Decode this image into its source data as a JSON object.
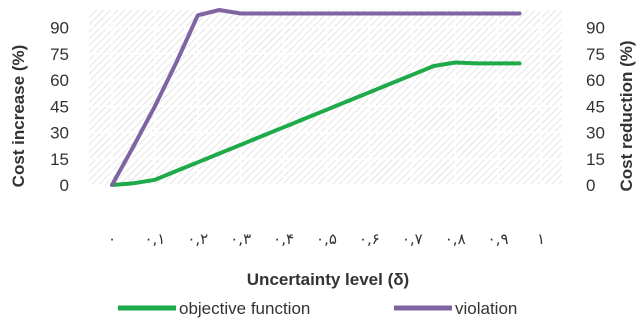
{
  "chart_data": {
    "type": "line",
    "xlabel": "Uncertainty level (δ)",
    "ylabel": "Cost increase (%)",
    "y2label": "Cost reduction (%)",
    "categories": [
      "۰",
      "۰,۱",
      "۰,۲",
      "۰,۳",
      "۰,۴",
      "۰,۵",
      "۰,۶",
      "۰,۷",
      "۰,۸",
      "۰,۹",
      "۱"
    ],
    "x": [
      0,
      0.05,
      0.1,
      0.15,
      0.2,
      0.25,
      0.3,
      0.35,
      0.4,
      0.45,
      0.5,
      0.55,
      0.6,
      0.65,
      0.7,
      0.75,
      0.8,
      0.85,
      0.9,
      0.95
    ],
    "series": [
      {
        "name": "objective function",
        "axis": "left",
        "color": "#1faa4a",
        "values": [
          0,
          1,
          3,
          8,
          13,
          18,
          23,
          28,
          33,
          38,
          43,
          48,
          53,
          58,
          63,
          68,
          70,
          69.5,
          69.5,
          69.5
        ]
      },
      {
        "name": "violation",
        "axis": "right",
        "color": "#8064a2",
        "values": [
          0,
          22,
          45,
          70,
          97,
          100,
          98,
          98,
          98,
          98,
          98,
          98,
          98,
          98,
          98,
          98,
          98,
          98,
          98,
          98
        ]
      }
    ],
    "yticks": [
      0,
      15,
      30,
      45,
      60,
      75,
      90
    ],
    "ylim": [
      0,
      100
    ],
    "y2lim": [
      0,
      100
    ],
    "xlim": [
      0,
      1
    ],
    "grid": true,
    "legend": "bottom"
  }
}
